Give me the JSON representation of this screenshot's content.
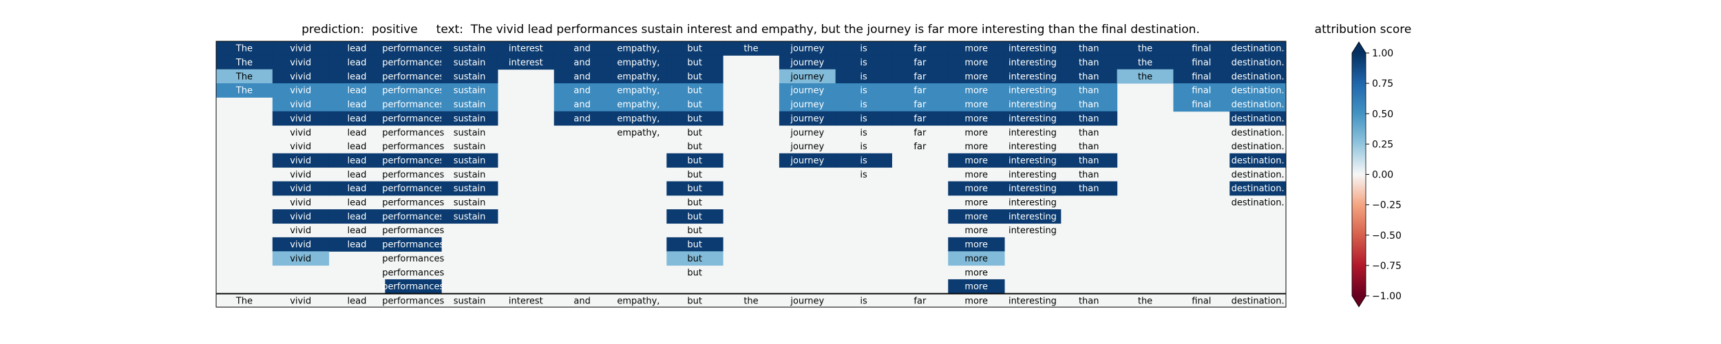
{
  "chart_data": {
    "type": "heatmap",
    "title": "prediction:  positive     text:  The vivid lead performances sustain interest and empathy, but the journey is far more interesting than the final destination.",
    "tokens": [
      "The",
      "vivid",
      "lead",
      "performances",
      "sustain",
      "interest",
      "and",
      "empathy,",
      "but",
      "the",
      "journey",
      "is",
      "far",
      "more",
      "interesting",
      "than",
      "the",
      "final",
      "destination."
    ],
    "levels": [
      [
        0.95,
        0.95,
        0.95,
        0.95,
        0.95,
        0.95,
        0.95,
        0.95,
        0.95,
        0.95,
        0.95,
        0.95,
        0.95,
        0.95,
        0.95,
        0.95,
        0.95,
        0.95,
        0.95
      ],
      [
        0.95,
        0.95,
        0.95,
        0.95,
        0.95,
        0.95,
        0.95,
        0.95,
        0.95,
        null,
        0.95,
        0.95,
        0.95,
        0.95,
        0.95,
        0.95,
        0.95,
        0.95,
        0.95
      ],
      [
        0.3,
        0.95,
        0.95,
        0.95,
        0.95,
        null,
        0.95,
        0.95,
        0.95,
        null,
        0.3,
        0.95,
        0.95,
        0.95,
        0.95,
        0.95,
        0.3,
        0.95,
        0.95
      ],
      [
        0.55,
        0.55,
        0.55,
        0.55,
        0.55,
        null,
        0.55,
        0.55,
        0.55,
        null,
        0.55,
        0.55,
        0.55,
        0.55,
        0.55,
        0.55,
        null,
        0.55,
        0.55
      ],
      [
        null,
        0.55,
        0.55,
        0.55,
        0.55,
        null,
        0.55,
        0.55,
        0.55,
        null,
        0.55,
        0.55,
        0.55,
        0.55,
        0.55,
        0.55,
        null,
        0.55,
        0.55
      ],
      [
        null,
        0.95,
        0.95,
        0.95,
        0.95,
        null,
        0.95,
        0.95,
        0.95,
        null,
        0.95,
        0.95,
        0.95,
        0.95,
        0.95,
        0.95,
        null,
        null,
        0.95
      ],
      [
        null,
        0.0,
        0.0,
        0.0,
        0.0,
        null,
        null,
        0.0,
        0.0,
        null,
        0.0,
        0.0,
        0.0,
        0.0,
        0.0,
        0.0,
        null,
        null,
        0.0
      ],
      [
        null,
        0.0,
        0.0,
        0.0,
        0.0,
        null,
        null,
        null,
        0.0,
        null,
        0.0,
        0.0,
        0.0,
        0.0,
        0.0,
        0.0,
        null,
        null,
        0.0
      ],
      [
        null,
        0.95,
        0.95,
        0.95,
        0.95,
        null,
        null,
        null,
        0.95,
        null,
        0.95,
        0.95,
        null,
        0.95,
        0.95,
        0.95,
        null,
        null,
        0.95
      ],
      [
        null,
        0.0,
        0.0,
        0.0,
        0.0,
        null,
        null,
        null,
        0.0,
        null,
        null,
        0.0,
        null,
        0.0,
        0.0,
        0.0,
        null,
        null,
        0.0
      ],
      [
        null,
        0.95,
        0.95,
        0.95,
        0.95,
        null,
        null,
        null,
        0.95,
        null,
        null,
        null,
        null,
        0.95,
        0.95,
        0.95,
        null,
        null,
        0.95
      ],
      [
        null,
        0.0,
        0.0,
        0.0,
        0.0,
        null,
        null,
        null,
        0.0,
        null,
        null,
        null,
        null,
        0.0,
        0.0,
        null,
        null,
        null,
        0.0
      ],
      [
        null,
        0.95,
        0.95,
        0.95,
        0.95,
        null,
        null,
        null,
        0.95,
        null,
        null,
        null,
        null,
        0.95,
        0.95,
        null,
        null,
        null,
        null
      ],
      [
        null,
        0.0,
        0.0,
        0.0,
        null,
        null,
        null,
        null,
        0.0,
        null,
        null,
        null,
        null,
        0.0,
        0.0,
        null,
        null,
        null,
        null
      ],
      [
        null,
        0.95,
        0.95,
        0.95,
        null,
        null,
        null,
        null,
        0.95,
        null,
        null,
        null,
        null,
        0.95,
        null,
        null,
        null,
        null,
        null
      ],
      [
        null,
        0.3,
        null,
        0.0,
        null,
        null,
        null,
        null,
        0.3,
        null,
        null,
        null,
        null,
        0.3,
        null,
        null,
        null,
        null,
        null
      ],
      [
        null,
        null,
        null,
        0.0,
        null,
        null,
        null,
        null,
        0.0,
        null,
        null,
        null,
        null,
        0.0,
        null,
        null,
        null,
        null,
        null
      ],
      [
        null,
        null,
        null,
        0.95,
        null,
        null,
        null,
        null,
        null,
        null,
        null,
        null,
        null,
        0.95,
        null,
        null,
        null,
        null,
        null
      ]
    ],
    "bottom_row": [
      "The",
      "vivid",
      "lead",
      "performances",
      "sustain",
      "interest",
      "and",
      "empathy,",
      "but",
      "the",
      "journey",
      "is",
      "far",
      "more",
      "interesting",
      "than",
      "the",
      "final",
      "destination."
    ],
    "colorbar": {
      "label": "attribution score",
      "range": [
        -1.0,
        1.0
      ],
      "ticks": [
        "1.00",
        "0.75",
        "0.50",
        "0.25",
        "0.00",
        "−0.25",
        "−0.50",
        "−0.75",
        "−1.00"
      ],
      "tick_values": [
        1.0,
        0.75,
        0.5,
        0.25,
        0.0,
        -0.25,
        -0.5,
        -0.75,
        -1.0
      ],
      "colormap": "RdBu"
    }
  }
}
